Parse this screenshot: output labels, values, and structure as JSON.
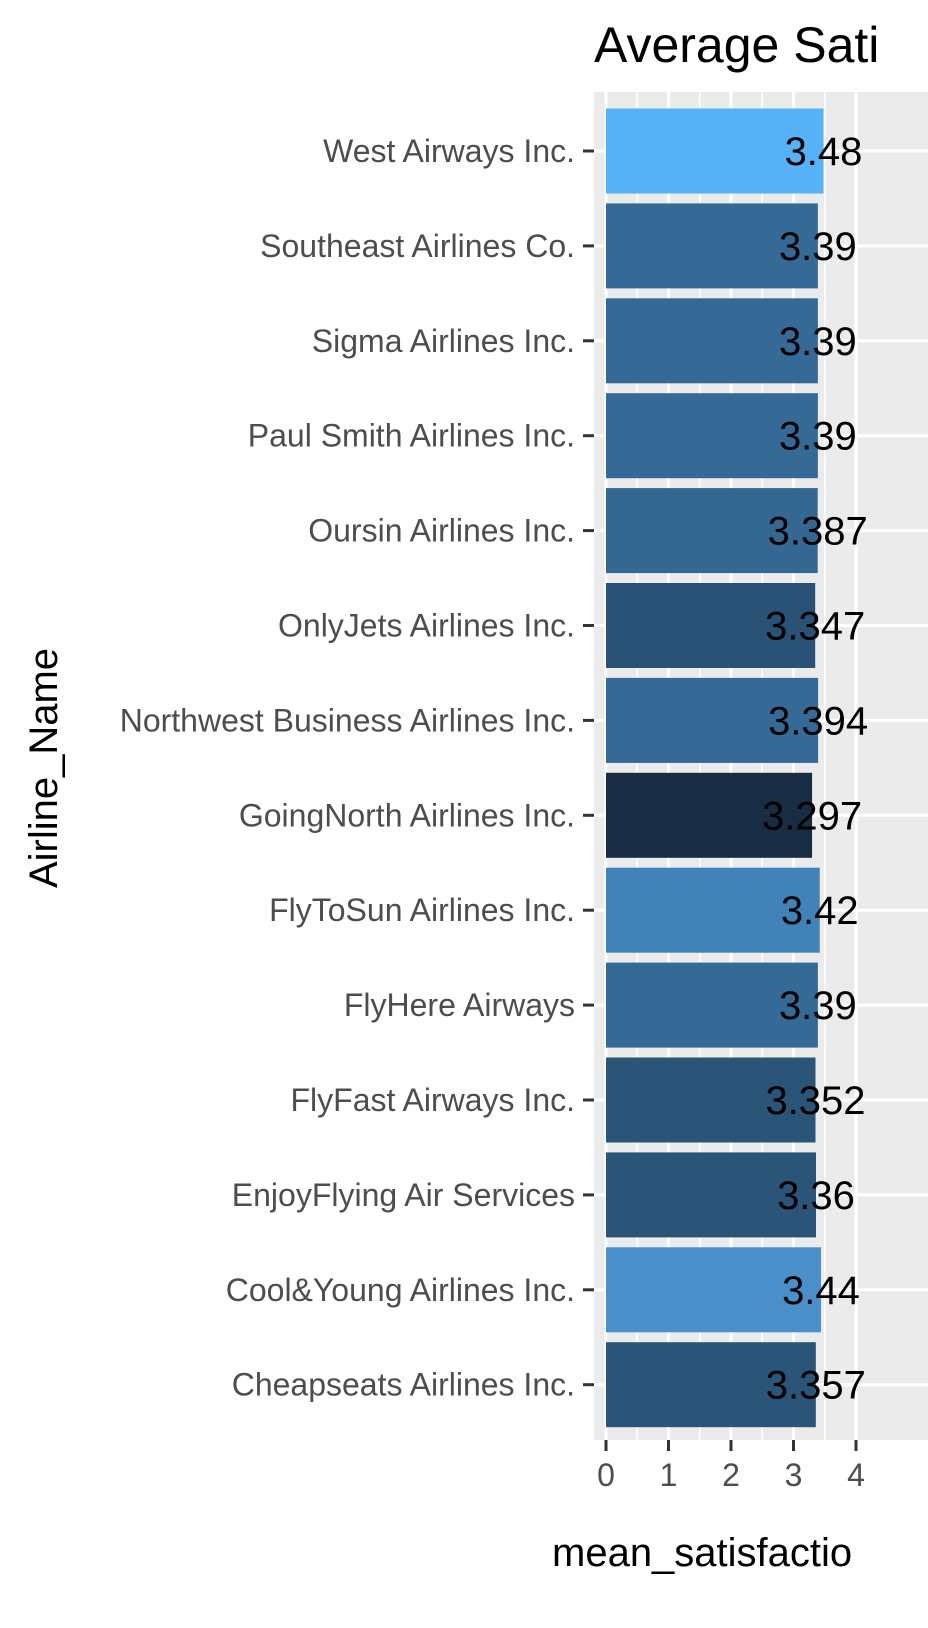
{
  "chart_data": {
    "type": "bar",
    "orientation": "horizontal",
    "title": "Average Sati",
    "xlabel": "mean_satisfactio",
    "ylabel": "Airline_Name",
    "xlim": [
      0,
      4.05
    ],
    "x_ticks": [
      "0",
      "1",
      "2",
      "3",
      "4"
    ],
    "grid": true,
    "categories": [
      "West Airways Inc.",
      "Southeast Airlines Co.",
      "Sigma Airlines Inc.",
      "Paul Smith Airlines Inc.",
      "Oursin Airlines Inc.",
      "OnlyJets Airlines Inc.",
      "Northwest Business Airlines Inc.",
      "GoingNorth Airlines Inc.",
      "FlyToSun Airlines Inc.",
      "FlyHere Airways",
      "FlyFast Airways Inc.",
      "EnjoyFlying Air Services",
      "Cool&Young Airlines Inc.",
      "Cheapseats Airlines Inc."
    ],
    "values": [
      3.48,
      3.39,
      3.39,
      3.39,
      3.387,
      3.347,
      3.394,
      3.297,
      3.42,
      3.39,
      3.352,
      3.36,
      3.44,
      3.357
    ],
    "data_labels": [
      "3.48",
      "3.39",
      "3.39",
      "3.39",
      "3.387",
      "3.347",
      "3.394",
      "3.297",
      "3.42",
      "3.39",
      "3.352",
      "3.36",
      "3.44",
      "3.357"
    ],
    "colors": [
      "#56b1f7",
      "#356a96",
      "#356a96",
      "#356a96",
      "#346893",
      "#2a5176",
      "#356a96",
      "#182c43",
      "#4183b8",
      "#356a96",
      "#2b5479",
      "#2b5479",
      "#4a8fc9",
      "#2b5479"
    ],
    "panel_background": "#ebebeb",
    "grid_color": "#ffffff"
  }
}
